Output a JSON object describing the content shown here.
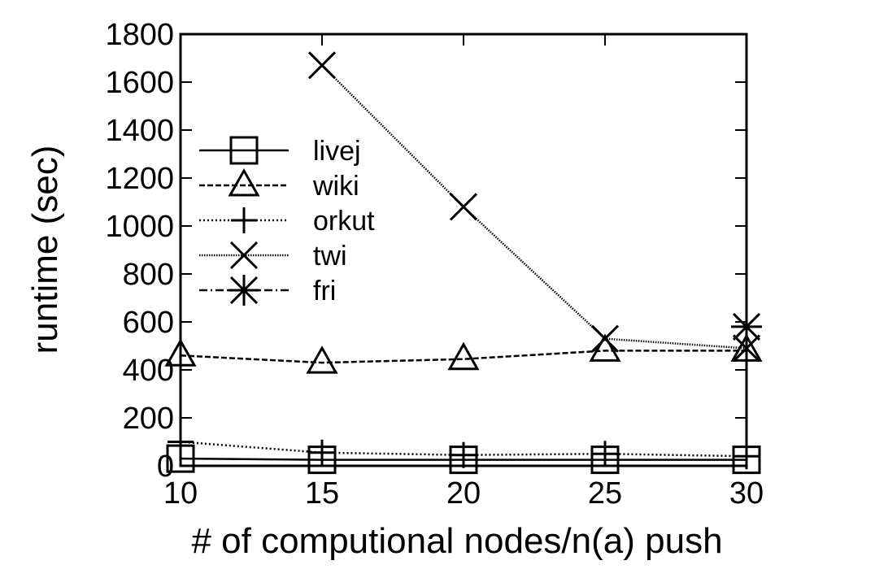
{
  "chart_data": {
    "type": "line",
    "title": "",
    "xlabel": "# of computional nodes/n(a) push",
    "ylabel": "runtime (sec)",
    "xlim": [
      10,
      30
    ],
    "ylim": [
      0,
      1800
    ],
    "xticks": [
      10,
      15,
      20,
      25,
      30
    ],
    "yticks": [
      0,
      200,
      400,
      600,
      800,
      1000,
      1200,
      1400,
      1600,
      1800
    ],
    "grid": false,
    "legend_position": "left",
    "series": [
      {
        "name": "livej",
        "marker": "square",
        "dash": "solid",
        "x": [
          10,
          15,
          20,
          25,
          30
        ],
        "y": [
          30,
          25,
          25,
          25,
          25
        ]
      },
      {
        "name": "wiki",
        "marker": "triangle",
        "dash": "dashed",
        "x": [
          10,
          15,
          20,
          25,
          30
        ],
        "y": [
          460,
          430,
          445,
          480,
          480
        ]
      },
      {
        "name": "orkut",
        "marker": "plus",
        "dash": "dotted",
        "x": [
          10,
          15,
          20,
          25,
          30
        ],
        "y": [
          100,
          55,
          45,
          50,
          40
        ]
      },
      {
        "name": "twi",
        "marker": "cross",
        "dash": "dotted-fine",
        "x": [
          15,
          20,
          25,
          30
        ],
        "y": [
          1670,
          1080,
          530,
          490
        ]
      },
      {
        "name": "fri",
        "marker": "star",
        "dash": "dashdot",
        "x": [
          30
        ],
        "y": [
          580
        ]
      }
    ]
  }
}
